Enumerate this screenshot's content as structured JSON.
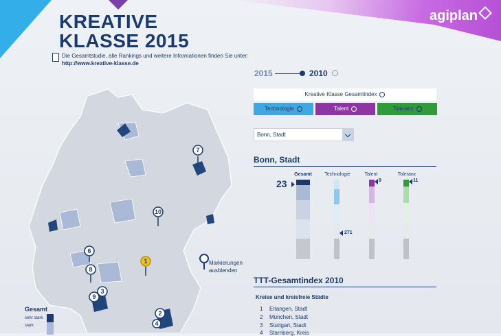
{
  "brand": {
    "name": "agiplan"
  },
  "header": {
    "title_line1": "KREATIVE",
    "title_line2": "KLASSE 2015",
    "info_text": "Die Gesamtstudie, alle Rankings und weitere Informationen finden Sie unter:",
    "info_link": "http://www.kreative-klasse.de"
  },
  "years": {
    "left": "2015",
    "right": "2010",
    "selected": "2010"
  },
  "index_button": "Kreative Klasse Gesamtindex",
  "tabs": [
    {
      "label": "Technologie",
      "color": "#41a8df"
    },
    {
      "label": "Talent",
      "color": "#8c35a3"
    },
    {
      "label": "Toleranz",
      "color": "#2f9b3a"
    }
  ],
  "select": {
    "value": "Bonn, Stadt"
  },
  "city": {
    "name": "Bonn, Stadt",
    "columns": [
      {
        "label": "Gesamt",
        "rank": "23"
      },
      {
        "label": "Technologie",
        "rank": "271"
      },
      {
        "label": "Talent",
        "rank": "9"
      },
      {
        "label": "Toleranz",
        "rank": "11"
      }
    ]
  },
  "map": {
    "markers": [
      "1",
      "2",
      "3",
      "4",
      "6",
      "7",
      "8",
      "9",
      "10"
    ],
    "toggle_label_1": "Markierungen",
    "toggle_label_2": "ausblenden"
  },
  "legend": {
    "head": "Gesamt",
    "items": [
      "sehr stark",
      "stark"
    ]
  },
  "ttt": {
    "title": "TTT-Gesamtindex 2010",
    "subtitle": "Kreise und kreisfreie Städte",
    "rows": [
      {
        "n": "1",
        "name": "Erlangen, Stadt"
      },
      {
        "n": "2",
        "name": "München, Stadt"
      },
      {
        "n": "3",
        "name": "Stuttgart, Stadt"
      },
      {
        "n": "4",
        "name": "Starnberg, Kreis"
      }
    ]
  }
}
